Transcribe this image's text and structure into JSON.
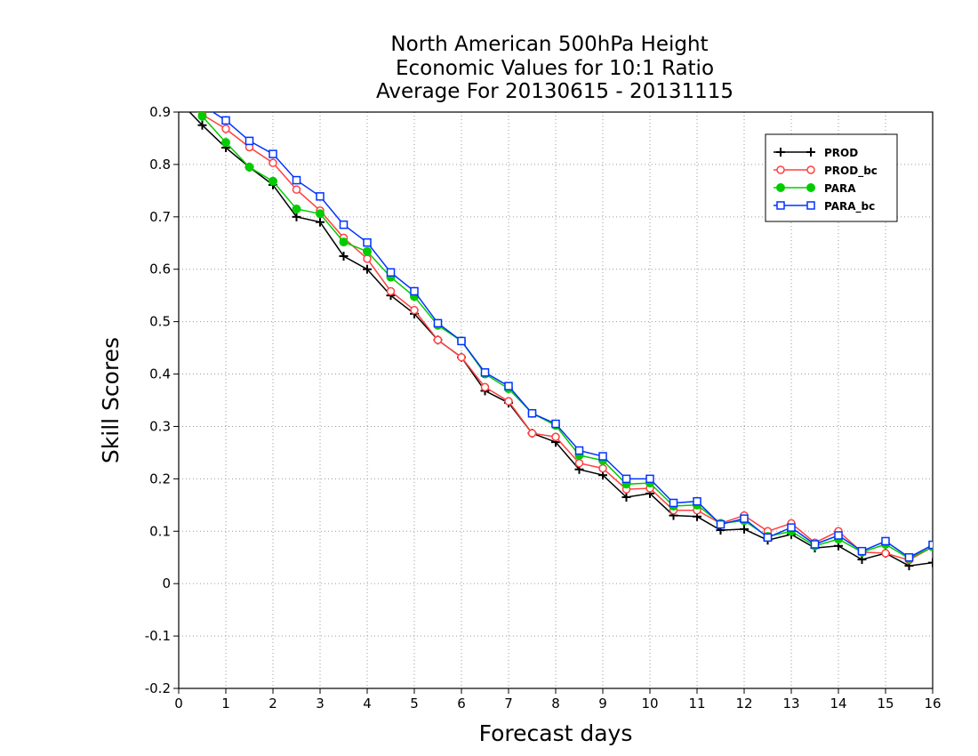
{
  "chart_data": {
    "type": "line",
    "title": [
      "North American 500hPa Height",
      "Economic Values for 10:1 Ratio",
      "Average For 20130615 - 20131115"
    ],
    "xlabel": "Forecast days",
    "ylabel": "Skill Scores",
    "xlim": [
      0,
      16
    ],
    "ylim": [
      -0.2,
      0.9
    ],
    "xticks": [
      "0",
      "1",
      "2",
      "3",
      "4",
      "5",
      "6",
      "7",
      "8",
      "9",
      "10",
      "11",
      "12",
      "13",
      "14",
      "15",
      "16"
    ],
    "yticks": [
      "-0.2",
      "-0.1",
      "0",
      "0.1",
      "0.2",
      "0.3",
      "0.4",
      "0.5",
      "0.6",
      "0.7",
      "0.8",
      "0.9"
    ],
    "grid": true,
    "legend_position": "top-right",
    "x": [
      0.5,
      1,
      1.5,
      2,
      2.5,
      3,
      3.5,
      4,
      4.5,
      5,
      5.5,
      6,
      6.5,
      7,
      7.5,
      8,
      8.5,
      9,
      9.5,
      10,
      10.5,
      11,
      11.5,
      12,
      12.5,
      13,
      13.5,
      14,
      14.5,
      15,
      15.5,
      16
    ],
    "series": [
      {
        "name": "PROD",
        "color": "#000000",
        "marker": "plus",
        "values": [
          0.875,
          0.832,
          0.795,
          0.761,
          0.7,
          0.69,
          0.625,
          0.6,
          0.55,
          0.515,
          0.465,
          0.432,
          0.368,
          0.345,
          0.287,
          0.27,
          0.218,
          0.207,
          0.165,
          0.172,
          0.13,
          0.128,
          0.102,
          0.104,
          0.083,
          0.094,
          0.068,
          0.072,
          0.046,
          0.058,
          0.034,
          0.04
        ]
      },
      {
        "name": "PROD_bc",
        "color": "#ff4040",
        "marker": "circle-open",
        "values": [
          0.895,
          0.868,
          0.833,
          0.803,
          0.752,
          0.712,
          0.66,
          0.62,
          0.558,
          0.522,
          0.465,
          0.432,
          0.375,
          0.348,
          0.287,
          0.28,
          0.23,
          0.22,
          0.18,
          0.182,
          0.14,
          0.14,
          0.115,
          0.13,
          0.1,
          0.115,
          0.078,
          0.1,
          0.06,
          0.058,
          0.045,
          0.07
        ]
      },
      {
        "name": "PARA",
        "color": "#00cc00",
        "marker": "circle-filled",
        "values": [
          0.892,
          0.842,
          0.795,
          0.768,
          0.715,
          0.706,
          0.652,
          0.634,
          0.585,
          0.548,
          0.493,
          0.463,
          0.4,
          0.372,
          0.325,
          0.302,
          0.245,
          0.235,
          0.19,
          0.192,
          0.148,
          0.15,
          0.115,
          0.12,
          0.09,
          0.1,
          0.072,
          0.085,
          0.06,
          0.075,
          0.048,
          0.07
        ]
      },
      {
        "name": "PARA_bc",
        "color": "#0033ff",
        "marker": "square-open",
        "values": [
          0.913,
          0.884,
          0.845,
          0.82,
          0.77,
          0.739,
          0.685,
          0.651,
          0.594,
          0.558,
          0.497,
          0.463,
          0.403,
          0.377,
          0.325,
          0.305,
          0.254,
          0.243,
          0.2,
          0.2,
          0.154,
          0.157,
          0.113,
          0.124,
          0.088,
          0.107,
          0.075,
          0.092,
          0.062,
          0.081,
          0.05,
          0.074
        ]
      }
    ]
  }
}
